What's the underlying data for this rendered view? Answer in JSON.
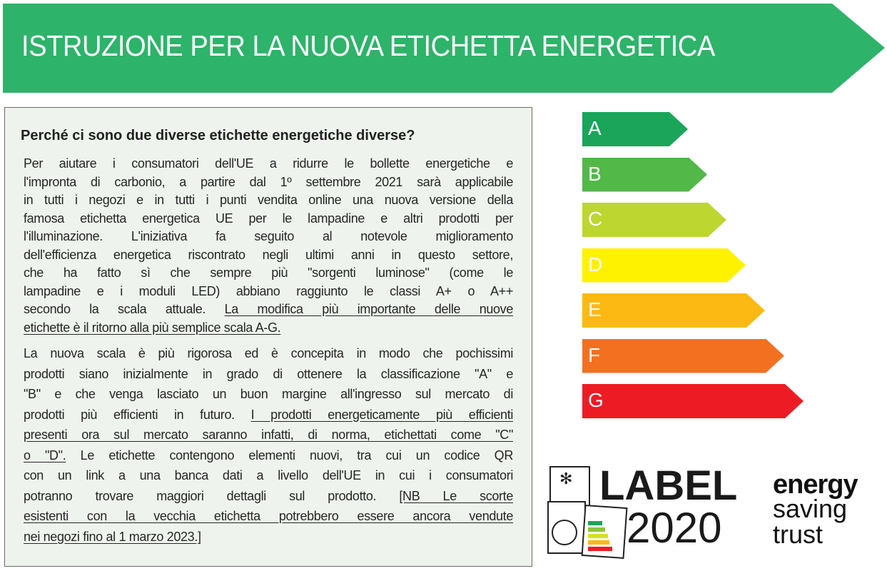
{
  "banner": {
    "title": "ISTRUZIONE PER LA NUOVA ETICHETTA ENERGETICA",
    "color": "#2db36a"
  },
  "info_box": {
    "heading": "Perché ci sono due diverse etichette energetiche diverse?",
    "paragraphs": [
      [
        [
          {
            "t": "Per aiutare i consumatori dell'UE a ridurre le bollette energetiche e"
          }
        ],
        [
          {
            "t": "l'impronta di carbonio, a partire dal 1º settembre 2021 sarà applicabile"
          }
        ],
        [
          {
            "t": "in tutti i negozi e in tutti i punti vendita online una nuova versione della"
          }
        ],
        [
          {
            "t": "famosa etichetta energetica UE per le lampadine e altri prodotti per"
          }
        ],
        [
          {
            "t": "l'illuminazione. L'iniziativa fa seguito al notevole miglioramento"
          }
        ],
        [
          {
            "t": "dell'efficienza energetica riscontrato negli ultimi anni in questo settore,"
          }
        ],
        [
          {
            "t": "che ha fatto sì che sempre più \"sorgenti luminose\" (come le"
          }
        ],
        [
          {
            "t": "lampadine e i moduli LED) abbiano raggiunto le classi A+ o A++"
          }
        ],
        [
          {
            "t": "secondo la scala attuale.  "
          },
          {
            "t": "La modifica più importante delle nuove",
            "u": true
          }
        ],
        [
          {
            "t": "etichette è il ritorno alla più semplice scala A-G.",
            "u": true
          }
        ]
      ],
      [
        [
          {
            "t": "La nuova scala è più rigorosa ed è concepita in modo che pochissimi"
          }
        ],
        [
          {
            "t": "prodotti siano inizialmente in grado di ottenere la classificazione \"A\" e"
          }
        ],
        [
          {
            "t": "\"B\" e che venga lasciato un buon margine all'ingresso sul mercato di"
          }
        ],
        [
          {
            "t": "prodotti più efficienti in futuro. "
          },
          {
            "t": "I prodotti energeticamente più efficienti",
            "u": true
          }
        ],
        [
          {
            "t": "presenti ora sul mercato saranno infatti, di norma, etichettati come \"C\"",
            "u": true
          }
        ],
        [
          {
            "t": "o \"D\".",
            "u": true
          },
          {
            "t": " Le etichette contengono elementi nuovi, tra cui un codice QR"
          }
        ],
        [
          {
            "t": "con un link a una banca dati a livello dell'UE in cui i consumatori"
          }
        ],
        [
          {
            "t": "potranno trovare maggiori dettagli sul prodotto. "
          },
          {
            "t": "[NB Le scorte",
            "u": true
          }
        ],
        [
          {
            "t": "esistenti con la vecchia etichetta potrebbero essere ancora vendute",
            "u": true
          }
        ],
        [
          {
            "t": "nei negozi fino al 1 marzo 2023.]",
            "u": true
          }
        ]
      ]
    ]
  },
  "energy_scale": [
    {
      "label": "A",
      "color": "#1aa55a"
    },
    {
      "label": "B",
      "color": "#52b848"
    },
    {
      "label": "C",
      "color": "#bdd630"
    },
    {
      "label": "D",
      "color": "#fff200"
    },
    {
      "label": "E",
      "color": "#fcb914"
    },
    {
      "label": "F",
      "color": "#f37021"
    },
    {
      "label": "G",
      "color": "#ed1c24"
    }
  ],
  "logos": {
    "label2020": {
      "line1": "LABEL",
      "line2": "2020"
    },
    "energy_saving_trust": {
      "line1": "energy",
      "line2": "saving",
      "line3": "trust"
    }
  }
}
